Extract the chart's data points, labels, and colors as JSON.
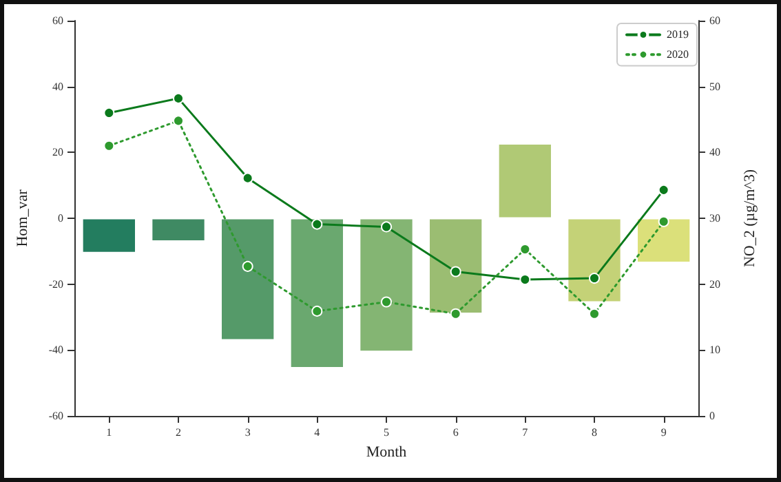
{
  "chart_data": {
    "type": "bar",
    "xlabel": "Month",
    "ylabel": "Hom_var",
    "y2label": "NO_2 (µg/m^3)",
    "categories": [
      "1",
      "2",
      "3",
      "4",
      "5",
      "6",
      "7",
      "8",
      "9"
    ],
    "series": [
      {
        "colors": [
          "#237d5f",
          "#3f8a63",
          "#559a69",
          "#6aa86f",
          "#84b573",
          "#9bbd72",
          "#b0c975",
          "#c4d277",
          "#dbe07a"
        ],
        "values": [
          -10.5,
          -7,
          -37,
          -45.5,
          -40.5,
          -29,
          22.7,
          -25.5,
          -13.5
        ]
      },
      {
        "type": "line",
        "name": "2019",
        "color": "#0b7a1c",
        "axis": "y2",
        "line_style": "solid",
        "values": [
          46,
          48.2,
          36.1,
          29.1,
          28.7,
          21.9,
          20.7,
          20.9,
          34.3
        ]
      },
      {
        "type": "line",
        "name": "2020",
        "color": "#2e9a2e",
        "axis": "y2",
        "line_style": "dotted",
        "values": [
          41,
          44.8,
          22.7,
          15.9,
          17.3,
          15.5,
          25.3,
          15.5,
          29.5
        ]
      }
    ],
    "ylim": [
      -60,
      60
    ],
    "yticks": [
      -60,
      -40,
      -20,
      0,
      20,
      40,
      60
    ],
    "y2lim": [
      0,
      60
    ],
    "y2ticks": [
      0,
      10,
      20,
      30,
      40,
      50,
      60
    ],
    "marker": "circle",
    "legend": "top right",
    "grid": false
  }
}
